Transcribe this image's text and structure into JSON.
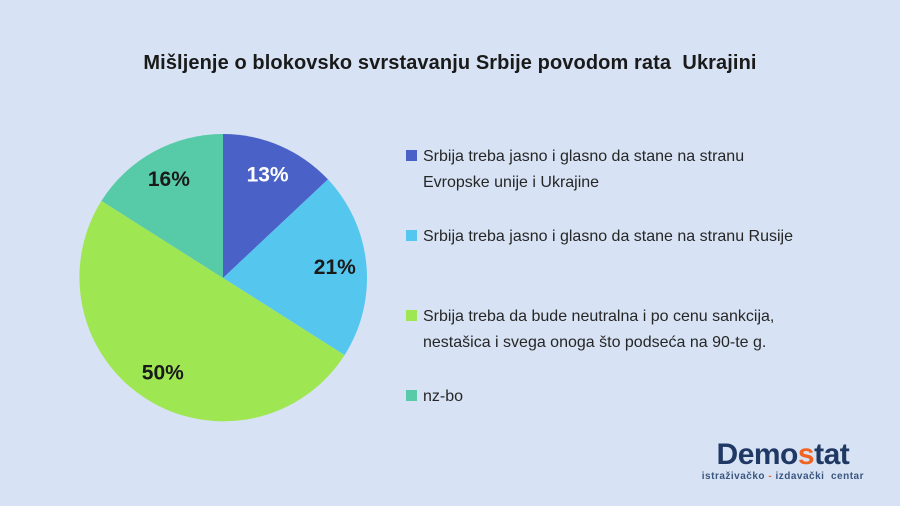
{
  "chart_data": {
    "type": "pie",
    "title": "Mišljenje o blokovsko svrstavanju Srbije povodom rata  Ukrajini",
    "legend_position": "right",
    "start_angle_deg": 0,
    "direction": "clockwise",
    "slices": [
      {
        "label": "Srbija treba jasno i glasno da stane na stranu Evropske unije i Ukrajine",
        "legend_lines": [
          "Srbija treba jasno i glasno da stane na stranu",
          "Evropske unije i Ukrajine"
        ],
        "value": 13,
        "display": "13%",
        "color": "#4A62C8",
        "value_label_color": "#FFFFFF"
      },
      {
        "label": "Srbija treba jasno i glasno da stane na stranu Rusije",
        "legend_lines": [
          "Srbija treba jasno i glasno da stane na stranu Rusije"
        ],
        "value": 21,
        "display": "21%",
        "color": "#55C7EE",
        "value_label_color": "#1A1A1A"
      },
      {
        "label": "Srbija treba da bude neutralna i po cenu sankcija, nestašica i svega onoga što podseća na 90-te g.",
        "legend_lines": [
          "Srbija treba da bude neutralna i po cenu sankcija,",
          "nestašica i svega onoga što podseća na 90-te g."
        ],
        "value": 50,
        "display": "50%",
        "color": "#9FE653",
        "value_label_color": "#1A1A1A"
      },
      {
        "label": "nz-bo",
        "legend_lines": [
          "nz-bo"
        ],
        "value": 16,
        "display": "16%",
        "color": "#57CBA7",
        "value_label_color": "#1A1A1A"
      }
    ]
  },
  "logo": {
    "part1": "Demo",
    "accent": "s",
    "part2": "tat",
    "tagline_part1": "istraživačko ",
    "tagline_dash": "-",
    "tagline_part2": " izdavački  centar"
  },
  "colors": {
    "background": "#D7E3F4",
    "title_text": "#1A1A1A",
    "legend_text": "#262626",
    "logo_navy": "#1F3864",
    "logo_orange": "#F26322"
  }
}
